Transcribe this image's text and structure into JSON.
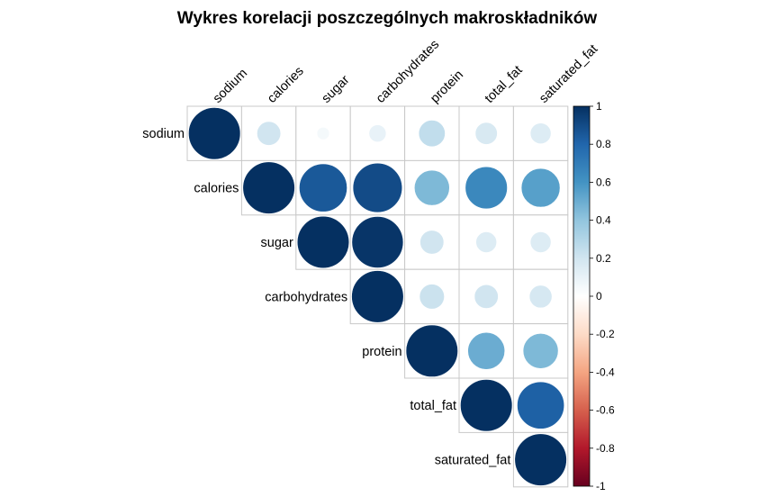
{
  "chart_data": {
    "type": "heatmap",
    "title": "Wykres korelacji poszczególnych makroskładników",
    "variables": [
      "sodium",
      "calories",
      "sugar",
      "carbohydrates",
      "protein",
      "total_fat",
      "saturated_fat"
    ],
    "matrix": [
      [
        1.0,
        0.2,
        0.05,
        0.1,
        0.25,
        0.17,
        0.15
      ],
      [
        0.2,
        1.0,
        0.85,
        0.9,
        0.45,
        0.65,
        0.55
      ],
      [
        0.05,
        0.85,
        1.0,
        0.98,
        0.2,
        0.15,
        0.15
      ],
      [
        0.1,
        0.9,
        0.98,
        1.0,
        0.22,
        0.2,
        0.18
      ],
      [
        0.25,
        0.45,
        0.2,
        0.22,
        1.0,
        0.5,
        0.45
      ],
      [
        0.17,
        0.65,
        0.15,
        0.2,
        0.5,
        1.0,
        0.82
      ],
      [
        0.15,
        0.55,
        0.15,
        0.18,
        0.45,
        0.82,
        1.0
      ]
    ],
    "display": "upper triangle, circle area proportional to |r|",
    "colorbar": {
      "range": [
        -1,
        1
      ],
      "ticks": [
        "1",
        "0.8",
        "0.6",
        "0.4",
        "0.2",
        "0",
        "-0.2",
        "-0.4",
        "-0.6",
        "-0.8",
        "-1"
      ],
      "colors": [
        "#67001F",
        "#B2182B",
        "#D6604D",
        "#F4A582",
        "#FDDBC7",
        "#FFFFFF",
        "#D1E5F0",
        "#92C5DE",
        "#4393C3",
        "#2166AC",
        "#053061"
      ]
    }
  }
}
